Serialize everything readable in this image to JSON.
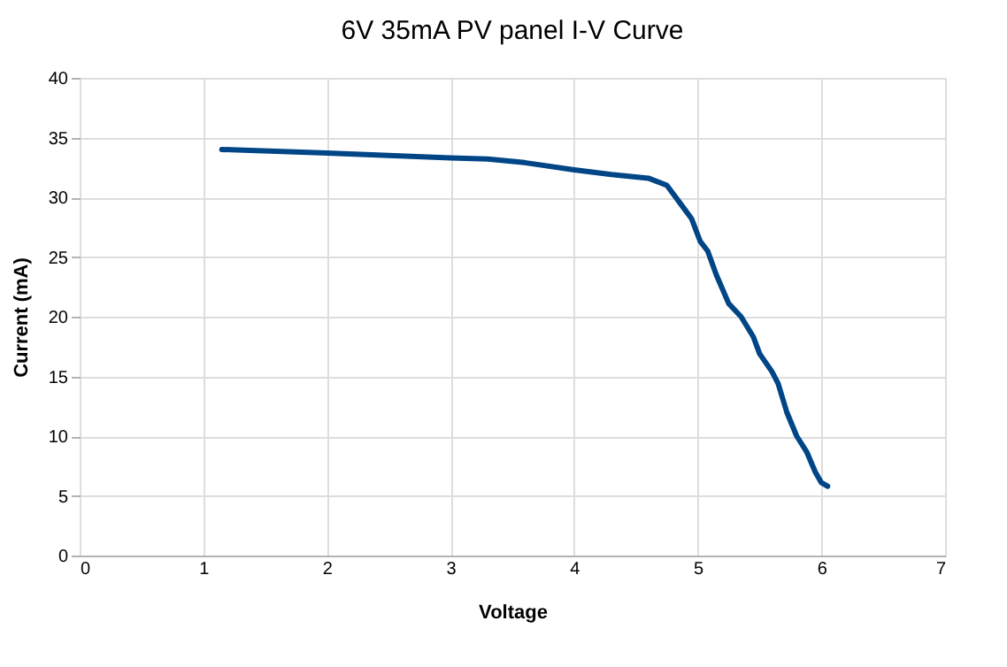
{
  "chart_data": {
    "type": "line",
    "title": "6V 35mA PV panel I-V Curve",
    "xlabel": "Voltage",
    "ylabel": "Current (mA)",
    "xlim": [
      0,
      7
    ],
    "xticks": [
      0,
      1,
      2,
      3,
      4,
      5,
      6,
      7
    ],
    "ylim": [
      0,
      40
    ],
    "yticks": [
      0,
      5,
      10,
      15,
      20,
      25,
      30,
      35,
      40
    ],
    "grid": true,
    "marker": "none",
    "line_style": "solid",
    "series": [
      {
        "color": "#004586",
        "x": [
          1.15,
          2,
          3,
          3.3,
          3.6,
          4,
          4.3,
          4.6,
          4.75,
          4.85,
          4.95,
          5.02,
          5.08,
          5.15,
          5.25,
          5.35,
          5.45,
          5.5,
          5.6,
          5.65,
          5.72,
          5.8,
          5.88,
          5.95,
          6,
          6.05
        ],
        "values": [
          34,
          33.7,
          33.3,
          33.2,
          32.9,
          32.3,
          31.9,
          31.6,
          31,
          29.6,
          28.2,
          26.3,
          25.5,
          23.5,
          21.1,
          20,
          18.3,
          16.9,
          15.4,
          14.4,
          12,
          10,
          8.7,
          7,
          6.1,
          5.8
        ]
      }
    ]
  }
}
